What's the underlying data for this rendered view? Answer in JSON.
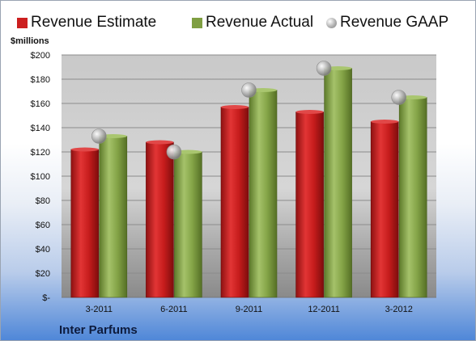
{
  "legend": {
    "estimate": "Revenue Estimate",
    "actual": "Revenue Actual",
    "gaap": "Revenue GAAP"
  },
  "units_label": "$millions",
  "company": "Inter Parfums",
  "colors": {
    "estimate": "#cc1f1f",
    "actual": "#7f9f42",
    "gaap": "#b8b8b8"
  },
  "chart_data": {
    "type": "bar",
    "categories": [
      "3-2011",
      "6-2011",
      "9-2011",
      "12-2011",
      "3-2012"
    ],
    "series": [
      {
        "name": "Revenue Estimate",
        "values": [
          122,
          128,
          157,
          153,
          145
        ]
      },
      {
        "name": "Revenue Actual",
        "values": [
          133,
          120,
          171,
          189,
          165
        ]
      },
      {
        "name": "Revenue GAAP",
        "values": [
          133,
          120,
          171,
          189,
          165
        ]
      }
    ],
    "ylabel": "$millions",
    "ylim": [
      0,
      200
    ],
    "yticks": [
      "$-",
      "$20",
      "$40",
      "$60",
      "$80",
      "$100",
      "$120",
      "$140",
      "$160",
      "$180",
      "$200"
    ],
    "grid": true,
    "legend_position": "top"
  }
}
